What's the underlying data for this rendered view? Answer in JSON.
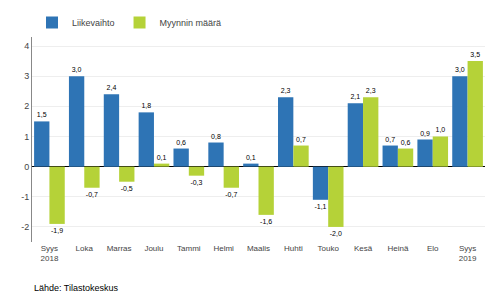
{
  "chart_data": {
    "type": "bar",
    "categories": [
      "Syys\n2018",
      "Loka",
      "Marras",
      "Joulu",
      "Tammi",
      "Helmi",
      "Maalis",
      "Huhti",
      "Touko",
      "Kesä",
      "Heinä",
      "Elo",
      "Syys\n2019"
    ],
    "series": [
      {
        "name": "Liikevaihto",
        "color": "#2E74B5",
        "values": [
          1.5,
          3.0,
          2.4,
          1.8,
          0.6,
          0.8,
          0.1,
          2.3,
          -1.1,
          2.1,
          0.7,
          0.9,
          3.0
        ],
        "value_labels": [
          "1,5",
          "3,0",
          "2,4",
          "1,8",
          "0,6",
          "0,8",
          "0,1",
          "2,3",
          "-1,1",
          "2,1",
          "0,7",
          "0,9",
          "3,0"
        ]
      },
      {
        "name": "Myynnin määrä",
        "color": "#B5D238",
        "values": [
          -1.9,
          -0.7,
          -0.5,
          0.1,
          -0.3,
          -0.7,
          -1.6,
          0.7,
          -2.0,
          2.3,
          0.6,
          1.0,
          3.5
        ],
        "value_labels": [
          "-1,9",
          "-0,7",
          "-0,5",
          "0,1",
          "-0,3",
          "-0,7",
          "-1,6",
          "0,7",
          "-2,0",
          "2,3",
          "0,6",
          "1,0",
          "3,5"
        ]
      }
    ],
    "ylim": [
      -2.5,
      4.3
    ],
    "yticks": [
      -2,
      -1,
      0,
      1,
      2,
      3,
      4
    ],
    "grid": true,
    "legend": "upper left",
    "data_labels": true,
    "annotations": [
      "Lähde: Tilastokeskus"
    ]
  }
}
